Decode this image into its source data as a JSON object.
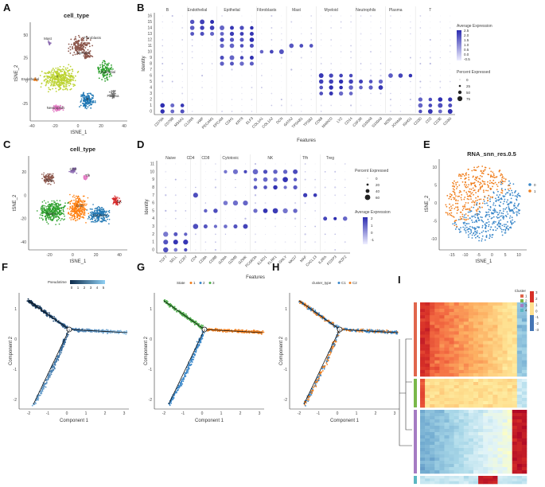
{
  "panels": {
    "A": {
      "label": "A",
      "title": "cell_type",
      "xlabel": "tSNE_1",
      "ylabel": "tSNE_2",
      "xticks": [
        "-40",
        "-20",
        "0",
        "20",
        "40"
      ],
      "yticks": [
        "50",
        "25",
        "0",
        "-25"
      ],
      "clusters": [
        {
          "name": "Mast",
          "color": "#8c6bb1"
        },
        {
          "name": "Fibroblasts",
          "color": "#8c564b"
        },
        {
          "name": "Myeloid",
          "color": "#8c564b"
        },
        {
          "name": "Endothelial",
          "color": "#ff7f0e"
        },
        {
          "name": "T",
          "color": "#bcd332"
        },
        {
          "name": "Epithelial",
          "color": "#2ca02c"
        },
        {
          "name": "Plasma",
          "color": "#7f7f7f"
        },
        {
          "name": "Neutrophils",
          "color": "#e377c2"
        },
        {
          "name": "B",
          "color": "#1f77b4"
        }
      ]
    },
    "B": {
      "label": "B",
      "ylabel": "Identity",
      "xlabel": "Features",
      "identities": [
        "0",
        "1",
        "2",
        "3",
        "4",
        "5",
        "6",
        "7",
        "8",
        "9",
        "10",
        "11",
        "12",
        "13",
        "14",
        "15",
        "16"
      ],
      "groups": [
        {
          "name": "B",
          "genes": [
            "CD79A",
            "CD79B",
            "MS4A1"
          ]
        },
        {
          "name": "Endothelial",
          "genes": [
            "CLDN5",
            "VWF",
            "PECAM1"
          ]
        },
        {
          "name": "Epithelial",
          "genes": [
            "EPCAM",
            "CDH1",
            "KRT8",
            "ELF3"
          ]
        },
        {
          "name": "Fibroblasts",
          "genes": [
            "COL1A1",
            "COL1A2",
            "DCN"
          ]
        },
        {
          "name": "Mast",
          "genes": [
            "GATA2",
            "TPSAB1",
            "TPSB2"
          ]
        },
        {
          "name": "Myeloid",
          "genes": [
            "CD68",
            "MARCO",
            "LYZ",
            "CD14"
          ]
        },
        {
          "name": "Neutrophils",
          "genes": [
            "CSF3R",
            "S100A8",
            "S100A9"
          ]
        },
        {
          "name": "Plasma",
          "genes": [
            "MZB1",
            "JCHAIN",
            "IGHG1"
          ]
        },
        {
          "name": "T",
          "genes": [
            "CD3D",
            "CD2",
            "CD3E",
            "CD3G"
          ]
        }
      ],
      "legend_avg_title": "Average Expression",
      "legend_avg_ticks": [
        "2.5",
        "2.0",
        "1.5",
        "1.0",
        "0.5",
        "0.0",
        "-0.5"
      ],
      "legend_pct_title": "Percent Expressed",
      "legend_pct_values": [
        "0",
        "25",
        "50",
        "75"
      ]
    },
    "C": {
      "label": "C",
      "title": "cell_type",
      "xlabel": "tSNE_1",
      "ylabel": "tSNE_2",
      "xticks": [
        "-20",
        "0",
        "20",
        "40"
      ],
      "yticks": [
        "20",
        "0",
        "-20",
        "-40"
      ],
      "clusters": [
        {
          "name": "CD4",
          "color": "#8c6bb1"
        },
        {
          "name": "Treg",
          "color": "#8c564b"
        },
        {
          "name": "Tfh",
          "color": "#e377c2"
        },
        {
          "name": "CD8",
          "color": "#ff7f0e"
        },
        {
          "name": "Naive",
          "color": "#2ca02c"
        },
        {
          "name": "Cytotoxic",
          "color": "#1f77b4"
        },
        {
          "name": "NK",
          "color": "#d62728"
        }
      ]
    },
    "D": {
      "label": "D",
      "ylabel": "Identity",
      "xlabel": "Features",
      "identities": [
        "0",
        "1",
        "2",
        "3",
        "4",
        "5",
        "6",
        "7",
        "8",
        "9",
        "10",
        "11"
      ],
      "groups": [
        {
          "name": "Naive",
          "genes": [
            "TCF7",
            "SELL",
            "CCR7"
          ]
        },
        {
          "name": "CD4",
          "genes": [
            "CD4"
          ]
        },
        {
          "name": "CD8",
          "genes": [
            "CD8A",
            "CD8B"
          ]
        },
        {
          "name": "Cytotoxic",
          "genes": [
            "GZMA",
            "GZMB",
            "GZMK"
          ]
        },
        {
          "name": "NK",
          "genes": [
            "FCGR3A",
            "KLRD1",
            "KLRF1",
            "GNLY",
            "NKG7"
          ]
        },
        {
          "name": "Tfh",
          "genes": [
            "MAF",
            "CXCL13"
          ]
        },
        {
          "name": "Treg",
          "genes": [
            "IL2RA",
            "FOXP3",
            "IKZF2"
          ]
        }
      ],
      "legend_pct_title": "Percent Expressed",
      "legend_pct_values": [
        "0",
        "20",
        "40",
        "60"
      ],
      "legend_avg_title": "Average Expression",
      "legend_avg_ticks": [
        "2",
        "1",
        "0",
        "-1"
      ]
    },
    "E": {
      "label": "E",
      "title": "RNA_snn_res.0.5",
      "xlabel": "tSNE_1",
      "ylabel": "tSNE_2",
      "xticks": [
        "-15",
        "-10",
        "-5",
        "0",
        "5",
        "10"
      ],
      "yticks": [
        "10",
        "5",
        "0",
        "-5",
        "-10"
      ],
      "legend": [
        {
          "name": "0",
          "color": "#3a87c9"
        },
        {
          "name": "1",
          "color": "#f07f1e"
        }
      ]
    },
    "F": {
      "label": "F",
      "legend_title": "Pseudotime",
      "legend_ticks": [
        "0",
        "1",
        "2",
        "3",
        "4",
        "5"
      ],
      "xlabel": "Component 1",
      "ylabel": "Component 2",
      "xticks": [
        "-2",
        "-1",
        "0",
        "1",
        "2",
        "3"
      ],
      "yticks": [
        "1",
        "0",
        "-1",
        "-2"
      ]
    },
    "G": {
      "label": "G",
      "legend_title": "State",
      "legend": [
        {
          "name": "1",
          "color": "#f07f1e"
        },
        {
          "name": "2",
          "color": "#3a87c9"
        },
        {
          "name": "3",
          "color": "#4daf4a"
        }
      ],
      "xlabel": "Component 1",
      "ylabel": "Component 2",
      "xticks": [
        "-2",
        "-1",
        "0",
        "1",
        "2",
        "3"
      ],
      "yticks": [
        "1",
        "0",
        "-1",
        "-2"
      ]
    },
    "H": {
      "label": "H",
      "legend_title": "cluster_type",
      "legend": [
        {
          "name": "C1",
          "color": "#3a87c9"
        },
        {
          "name": "C2",
          "color": "#f07f1e"
        }
      ],
      "xlabel": "Component 1",
      "ylabel": "Component 2",
      "xticks": [
        "-2",
        "-1",
        "0",
        "1",
        "2",
        "3"
      ],
      "yticks": [
        "1",
        "0",
        "-1",
        "-2"
      ]
    },
    "I": {
      "label": "I",
      "legend_title": "Cluster",
      "clusters": [
        {
          "name": "1",
          "color": "#e0664c"
        },
        {
          "name": "2",
          "color": "#7ab84a"
        },
        {
          "name": "3",
          "color": "#a57bc3"
        },
        {
          "name": "4",
          "color": "#5ab7c2"
        }
      ],
      "scale_ticks": [
        "3",
        "2",
        "1",
        "0",
        "-1",
        "-2",
        "-3"
      ]
    }
  }
}
